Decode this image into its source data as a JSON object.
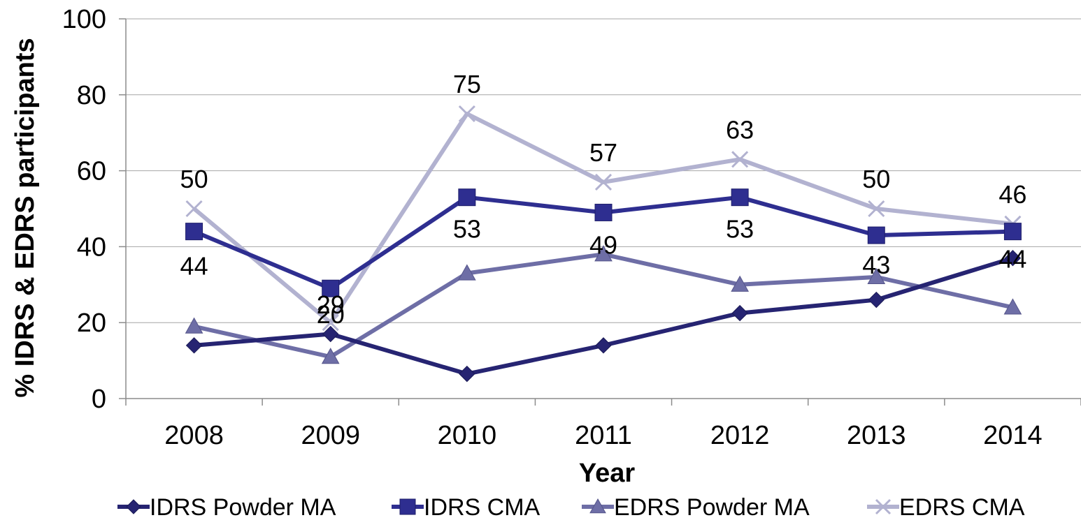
{
  "chart_data": {
    "type": "line",
    "xlabel": "Year",
    "ylabel": "% IDRS & EDRS participants",
    "categories": [
      "2008",
      "2009",
      "2010",
      "2011",
      "2012",
      "2013",
      "2014"
    ],
    "ylim": [
      0,
      100
    ],
    "yticks": [
      0,
      20,
      40,
      60,
      80,
      100
    ],
    "grid": true,
    "legend_position": "bottom",
    "series": [
      {
        "name": "IDRS Powder MA",
        "values": [
          14,
          17,
          6.5,
          14,
          22.5,
          26,
          37
        ],
        "color": "#262472",
        "marker": "diamond"
      },
      {
        "name": "IDRS CMA",
        "values": [
          44,
          29,
          53,
          49,
          53,
          43,
          44
        ],
        "color": "#2e2e90",
        "marker": "square",
        "labels": [
          "44",
          "29",
          "53",
          "49",
          "53",
          "43",
          "44"
        ]
      },
      {
        "name": "EDRS Powder MA",
        "values": [
          19,
          11,
          33,
          38,
          30,
          32,
          24
        ],
        "color": "#6e6ea6",
        "marker": "triangle"
      },
      {
        "name": "EDRS CMA",
        "values": [
          50,
          20,
          75,
          57,
          63,
          50,
          46
        ],
        "color": "#b2b2d0",
        "marker": "x",
        "labels": [
          "50",
          "20",
          "75",
          "57",
          "63",
          "50",
          "46"
        ]
      }
    ]
  }
}
